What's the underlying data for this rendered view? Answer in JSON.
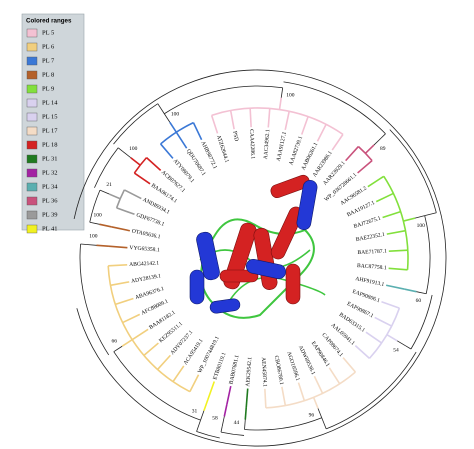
{
  "legend": {
    "title": "Colored ranges",
    "items": [
      {
        "label": "PL 5",
        "color": "#f3c1d3"
      },
      {
        "label": "PL 6",
        "color": "#f1cf7e"
      },
      {
        "label": "PL 7",
        "color": "#3b78d6"
      },
      {
        "label": "PL 8",
        "color": "#b4612a"
      },
      {
        "label": "PL 9",
        "color": "#82e03c"
      },
      {
        "label": "PL 14",
        "color": "#d9d1ef"
      },
      {
        "label": "PL 15",
        "color": "#d9d1ef"
      },
      {
        "label": "PL 17",
        "color": "#f4dcc6"
      },
      {
        "label": "PL 18",
        "color": "#d42222"
      },
      {
        "label": "PL 31",
        "color": "#1f7a1f"
      },
      {
        "label": "PL 32",
        "color": "#a322a3"
      },
      {
        "label": "PL 34",
        "color": "#5aafb0"
      },
      {
        "label": "PL 36",
        "color": "#c9527c"
      },
      {
        "label": "PL 39",
        "color": "#9a9a9a"
      },
      {
        "label": "PL 41",
        "color": "#f1f122"
      }
    ]
  },
  "leaves": [
    {
      "label": "OTA05636.1",
      "group": "PL 8"
    },
    {
      "label": "GDF67738.1",
      "group": "PL 39"
    },
    {
      "label": "ANDI6934.1",
      "group": "PL 39"
    },
    {
      "label": "BAA06174.1",
      "group": "PL 18"
    },
    {
      "label": "ACB07627.1",
      "group": "PL 18"
    },
    {
      "label": "ATY08079.1",
      "group": "PL 7"
    },
    {
      "label": "QDU70687.1",
      "group": "PL 7"
    },
    {
      "label": "AHB98772.1",
      "group": "PL 7"
    },
    {
      "label": "ATZ62644.1",
      "group": "PL 5"
    },
    {
      "label": "PSD",
      "group": "PL 5"
    },
    {
      "label": "CAA42286.1",
      "group": "PL 5"
    },
    {
      "label": "AAC34962.1",
      "group": "PL 5"
    },
    {
      "label": "AAA91127.1",
      "group": "PL 5"
    },
    {
      "label": "AAA82739.1",
      "group": "PL 5"
    },
    {
      "label": "AAB06261.1",
      "group": "PL 5"
    },
    {
      "label": "AAR23986.1",
      "group": "PL 5"
    },
    {
      "label": "AAR23929.1",
      "group": "PL 36"
    },
    {
      "label": "WP_036728661.1",
      "group": "PL 36"
    },
    {
      "label": "AAC96581.2",
      "group": "PL 9"
    },
    {
      "label": "BAA19127.1",
      "group": "PL 9"
    },
    {
      "label": "BAJ72675.1",
      "group": "PL 9"
    },
    {
      "label": "BAE22352.1",
      "group": "PL 9"
    },
    {
      "label": "BAE71787.1",
      "group": "PL 9"
    },
    {
      "label": "BAC87758.1",
      "group": "PL 9"
    },
    {
      "label": "AHF91913.1",
      "group": "PL 34"
    },
    {
      "label": "EAP90806.1",
      "group": "PL 15"
    },
    {
      "label": "EAP90867.1",
      "group": "PL 15"
    },
    {
      "label": "BAD63315.1",
      "group": "PL 15"
    },
    {
      "label": "AAL05941.1",
      "group": "PL 15"
    },
    {
      "label": "CAP08674.1",
      "group": "PL 17"
    },
    {
      "label": "EAP90846.1",
      "group": "PL 17"
    },
    {
      "label": "ADW89538.1",
      "group": "PL 17"
    },
    {
      "label": "AGO10596.1",
      "group": "PL 17"
    },
    {
      "label": "CBO86780.1",
      "group": "PL 17"
    },
    {
      "label": "AEN45874.1",
      "group": "PL 17"
    },
    {
      "label": "AEK29542.1",
      "group": "PL 31"
    },
    {
      "label": "BAB07681.1",
      "group": "PL 32"
    },
    {
      "label": "ETB80119.1",
      "group": "PL 41"
    },
    {
      "label": "WP_100744819.1",
      "group": "PL 6"
    },
    {
      "label": "ACA95419.1",
      "group": "PL 6"
    },
    {
      "label": "ADY07237.1",
      "group": "PL 6"
    },
    {
      "label": "KEZ95511.1",
      "group": "PL 6"
    },
    {
      "label": "BAA81182.1",
      "group": "PL 6"
    },
    {
      "label": "AFC88009.1",
      "group": "PL 6"
    },
    {
      "label": "ABA96376.1",
      "group": "PL 6"
    },
    {
      "label": "ADY28139.1",
      "group": "PL 6"
    },
    {
      "label": "ABG42142.1",
      "group": "PL 6"
    },
    {
      "label": "VYG65358.1",
      "group": "PL 8"
    }
  ],
  "bootstraps": [
    "100",
    "21",
    "100",
    "100",
    "100",
    "89",
    "100",
    "60",
    "54",
    "96",
    "44",
    "58",
    "31",
    "66",
    "100"
  ]
}
